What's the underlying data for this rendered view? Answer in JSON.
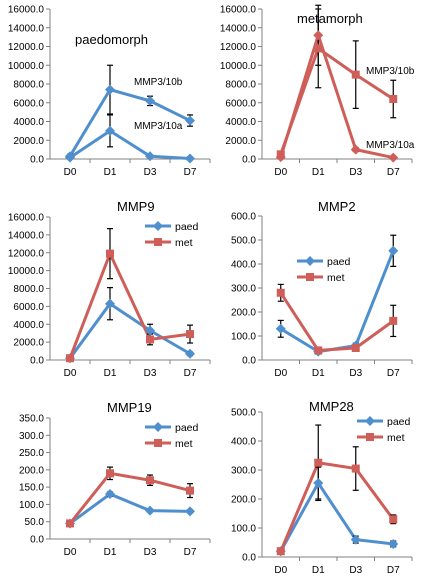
{
  "colors": {
    "paed": "#4f8fce",
    "met": "#cf5e59",
    "axis": "#808080",
    "error": "#000000"
  },
  "chart_data": [
    {
      "type": "line",
      "title": "paedomorph",
      "categories": [
        "D0",
        "D1",
        "D3",
        "D7"
      ],
      "ylim": [
        0,
        16000
      ],
      "yticks": [
        "0.0",
        "2000.0",
        "4000.0",
        "6000.0",
        "8000.0",
        "10000.0",
        "12000.0",
        "14000.0",
        "16000.0"
      ],
      "legend": "none",
      "series": [
        {
          "name": "MMP3/10b",
          "color": "#4f8fce",
          "marker": "diamond",
          "values": [
            300,
            7400,
            6200,
            4100
          ],
          "err": [
            200,
            2600,
            500,
            600
          ]
        },
        {
          "name": "MMP3/10a",
          "color": "#4f8fce",
          "marker": "diamond",
          "values": [
            150,
            3000,
            300,
            50
          ],
          "err": [
            100,
            1700,
            100,
            30
          ]
        }
      ]
    },
    {
      "type": "line",
      "title": "metamorph",
      "categories": [
        "D0",
        "D1",
        "D3",
        "D7"
      ],
      "ylim": [
        0,
        16000
      ],
      "yticks": [
        "0.0",
        "2000.0",
        "4000.0",
        "6000.0",
        "8000.0",
        "10000.0",
        "12000.0",
        "14000.0",
        "16000.0"
      ],
      "legend": "none",
      "series": [
        {
          "name": "MMP3/10b",
          "color": "#cf5e59",
          "marker": "square",
          "values": [
            500,
            11800,
            9000,
            6400
          ],
          "err": [
            200,
            4200,
            3600,
            2000
          ]
        },
        {
          "name": "MMP3/10a",
          "color": "#cf5e59",
          "marker": "diamond",
          "values": [
            200,
            13200,
            1000,
            150
          ],
          "err": [
            100,
            3200,
            200,
            50
          ]
        }
      ]
    },
    {
      "type": "line",
      "title": "MMP9",
      "categories": [
        "D0",
        "D1",
        "D3",
        "D7"
      ],
      "ylim": [
        0,
        16000
      ],
      "yticks": [
        "0.0",
        "2000.0",
        "4000.0",
        "6000.0",
        "8000.0",
        "10000.0",
        "12000.0",
        "14000.0",
        "16000.0"
      ],
      "legend": "top-right",
      "series": [
        {
          "name": "paed",
          "color": "#4f8fce",
          "marker": "diamond",
          "values": [
            200,
            6300,
            3300,
            700
          ],
          "err": [
            100,
            1800,
            700,
            200
          ]
        },
        {
          "name": "met",
          "color": "#cf5e59",
          "marker": "square",
          "values": [
            200,
            11900,
            2300,
            2900
          ],
          "err": [
            100,
            2800,
            600,
            1000
          ]
        }
      ]
    },
    {
      "type": "line",
      "title": "MMP2",
      "categories": [
        "D0",
        "D1",
        "D3",
        "D7"
      ],
      "ylim": [
        0,
        600
      ],
      "yticks": [
        "0.0",
        "100.0",
        "200.0",
        "300.0",
        "400.0",
        "500.0",
        "600.0"
      ],
      "legend": "top-center",
      "series": [
        {
          "name": "paed",
          "color": "#4f8fce",
          "marker": "diamond",
          "values": [
            130,
            35,
            60,
            455
          ],
          "err": [
            35,
            10,
            10,
            65
          ]
        },
        {
          "name": "met",
          "color": "#cf5e59",
          "marker": "square",
          "values": [
            280,
            40,
            50,
            163
          ],
          "err": [
            35,
            10,
            10,
            65
          ]
        }
      ]
    },
    {
      "type": "line",
      "title": "MMP19",
      "categories": [
        "D0",
        "D1",
        "D3",
        "D7"
      ],
      "ylim": [
        0,
        350
      ],
      "yticks": [
        "0.0",
        "50.0",
        "100.0",
        "150.0",
        "200.0",
        "250.0",
        "300.0",
        "350.0"
      ],
      "legend": "top-right",
      "series": [
        {
          "name": "paed",
          "color": "#4f8fce",
          "marker": "diamond",
          "values": [
            45,
            130,
            82,
            80
          ],
          "err": [
            3,
            6,
            3,
            3
          ]
        },
        {
          "name": "met",
          "color": "#cf5e59",
          "marker": "square",
          "values": [
            45,
            190,
            170,
            140
          ],
          "err": [
            3,
            18,
            15,
            20
          ]
        }
      ]
    },
    {
      "type": "line",
      "title": "MMP28",
      "categories": [
        "D0",
        "D1",
        "D3",
        "D7"
      ],
      "ylim": [
        0,
        500
      ],
      "yticks": [
        "0.0",
        "100.0",
        "200.0",
        "300.0",
        "400.0",
        "500.0"
      ],
      "legend": "top-right",
      "series": [
        {
          "name": "paed",
          "color": "#4f8fce",
          "marker": "diamond",
          "values": [
            20,
            255,
            60,
            45
          ],
          "err": [
            5,
            55,
            12,
            10
          ]
        },
        {
          "name": "met",
          "color": "#cf5e59",
          "marker": "square",
          "values": [
            20,
            325,
            305,
            130
          ],
          "err": [
            5,
            130,
            75,
            15
          ]
        }
      ]
    }
  ]
}
